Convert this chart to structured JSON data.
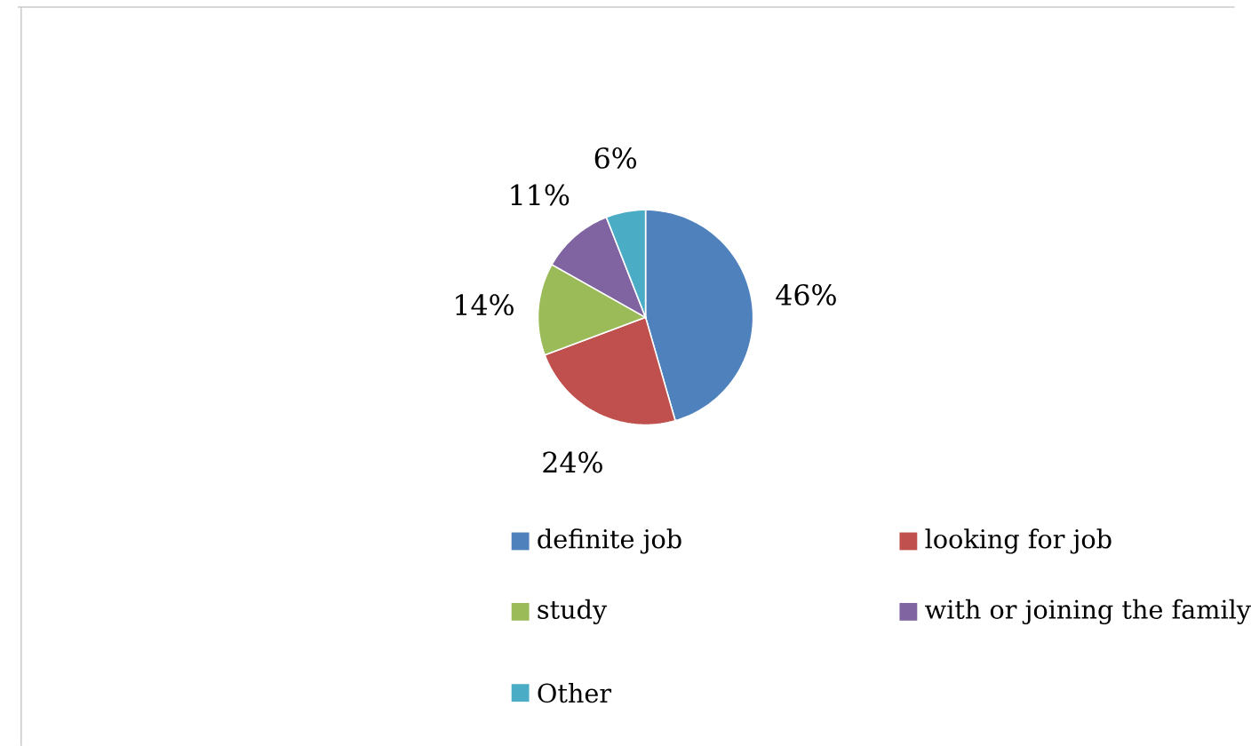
{
  "chart_data": {
    "type": "pie",
    "categories": [
      "definite job",
      "looking for job",
      "study",
      "with or joining the family",
      "Other"
    ],
    "values": [
      46,
      24,
      14,
      11,
      6
    ],
    "value_labels": [
      "46%",
      "24%",
      "14%",
      "11%",
      "6%"
    ],
    "colors": [
      "#4f81bd",
      "#c0504d",
      "#9bbb59",
      "#8064a2",
      "#4bacc6"
    ],
    "legend": "bottom"
  }
}
